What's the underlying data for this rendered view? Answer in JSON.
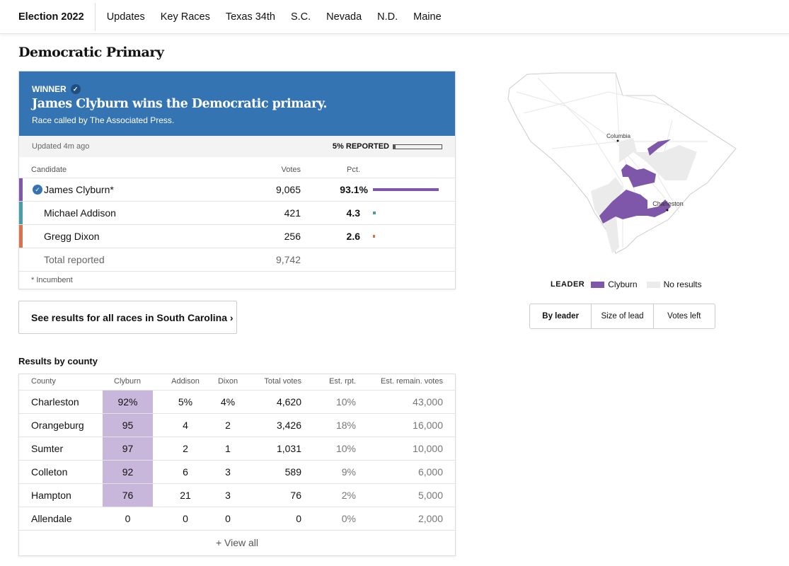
{
  "nav": {
    "brand": "Election 2022",
    "items": [
      "Updates",
      "Key Races",
      "Texas 34th",
      "S.C.",
      "Nevada",
      "N.D.",
      "Maine"
    ]
  },
  "page_title": "Democratic Primary",
  "race": {
    "winner_label": "WINNER",
    "headline": "James Clyburn wins the Democratic primary.",
    "called_by": "Race called by The Associated Press.",
    "updated": "Updated 4m ago",
    "reported_label": "5% REPORTED",
    "reported_pct": 5,
    "headers": {
      "candidate": "Candidate",
      "votes": "Votes",
      "pct": "Pct."
    },
    "candidates": [
      {
        "name": "James Clyburn*",
        "votes": "9,065",
        "pct": "93.1%",
        "pct_value": 93.1,
        "color": "#7e57ab",
        "winner": true
      },
      {
        "name": "Michael Addison",
        "votes": "421",
        "pct": "4.3",
        "pct_value": 4.3,
        "color": "#4a9ba8"
      },
      {
        "name": "Gregg Dixon",
        "votes": "256",
        "pct": "2.6",
        "pct_value": 2.6,
        "color": "#d9734e"
      }
    ],
    "total_label": "Total reported",
    "total_votes": "9,742",
    "footnote": "* Incumbent"
  },
  "see_all": "See results for all races in South Carolina ›",
  "county": {
    "title": "Results by county",
    "headers": [
      "County",
      "Clyburn",
      "Addison",
      "Dixon",
      "Total votes",
      "Est. rpt.",
      "Est. remain. votes"
    ],
    "rows": [
      [
        "Charleston",
        "92%",
        "5%",
        "4%",
        "4,620",
        "10%",
        "43,000"
      ],
      [
        "Orangeburg",
        "95",
        "4",
        "2",
        "3,426",
        "18%",
        "16,000"
      ],
      [
        "Sumter",
        "97",
        "2",
        "1",
        "1,031",
        "10%",
        "10,000"
      ],
      [
        "Colleton",
        "92",
        "6",
        "3",
        "589",
        "9%",
        "6,000"
      ],
      [
        "Hampton",
        "76",
        "21",
        "3",
        "76",
        "2%",
        "5,000"
      ],
      [
        "Allendale",
        "0",
        "0",
        "0",
        "0",
        "0%",
        "2,000"
      ]
    ],
    "view_all": "+ View all"
  },
  "map": {
    "cities": [
      "Columbia",
      "Charleston"
    ],
    "legend_title": "LEADER",
    "legend": [
      {
        "label": "Clyburn",
        "color": "#7e57ab"
      },
      {
        "label": "No results",
        "color": "#ebebeb"
      }
    ],
    "tabs": [
      "By leader",
      "Size of lead",
      "Votes left"
    ],
    "active_tab": "By leader"
  }
}
